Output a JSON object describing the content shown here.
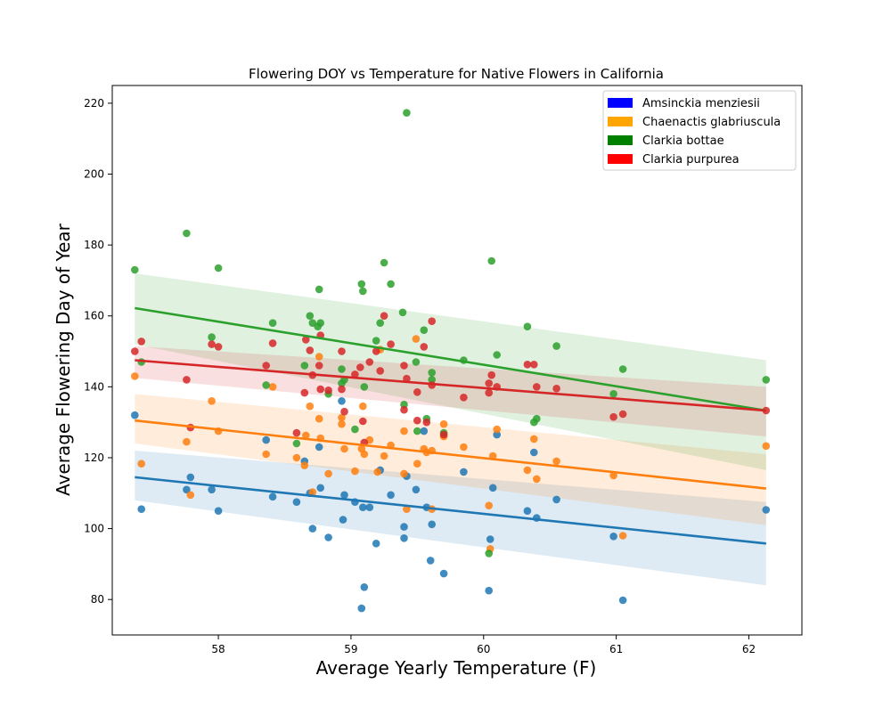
{
  "chart_data": {
    "type": "scatter",
    "title": "Flowering DOY vs Temperature for Native Flowers in California",
    "xlabel": "Average Yearly Temperature (F)",
    "ylabel": "Average Flowering Day of Year",
    "xlim": [
      57.2,
      62.4
    ],
    "ylim": [
      70,
      225
    ],
    "xticks": [
      58,
      59,
      60,
      61,
      62
    ],
    "yticks": [
      80,
      100,
      120,
      140,
      160,
      180,
      200,
      220
    ],
    "grid": false,
    "legend_position": "top-right",
    "series": [
      {
        "name": "Amsinckia menziesii",
        "legend_color": "#0000ff",
        "color": "#1f77b4",
        "fit": {
          "x0": 57.37,
          "y0": 114.5,
          "x1": 62.13,
          "y1": 95.8,
          "band_lo_left": 108.0,
          "band_lo_right": 84.0,
          "band_hi_left": 122.0,
          "band_hi_right": 107.5
        },
        "points": [
          [
            57.37,
            132
          ],
          [
            57.42,
            105.5
          ],
          [
            57.76,
            111
          ],
          [
            57.79,
            114.5
          ],
          [
            57.95,
            111
          ],
          [
            58.0,
            105
          ],
          [
            58.36,
            125
          ],
          [
            58.41,
            109
          ],
          [
            58.59,
            107.5
          ],
          [
            58.65,
            119
          ],
          [
            58.69,
            110
          ],
          [
            58.71,
            100
          ],
          [
            58.76,
            123
          ],
          [
            58.77,
            111.5
          ],
          [
            58.83,
            97.5
          ],
          [
            58.93,
            136
          ],
          [
            58.94,
            102.5
          ],
          [
            58.95,
            109.5
          ],
          [
            59.03,
            107.5
          ],
          [
            59.08,
            77.5
          ],
          [
            59.09,
            106
          ],
          [
            59.1,
            83.5
          ],
          [
            59.14,
            106
          ],
          [
            59.19,
            95.8
          ],
          [
            59.22,
            116.5
          ],
          [
            59.3,
            109.5
          ],
          [
            59.4,
            100.5
          ],
          [
            59.4,
            97.3
          ],
          [
            59.42,
            114.8
          ],
          [
            59.49,
            111
          ],
          [
            59.55,
            127.5
          ],
          [
            59.57,
            106
          ],
          [
            59.6,
            91
          ],
          [
            59.61,
            101.2
          ],
          [
            59.7,
            87.3
          ],
          [
            59.85,
            116
          ],
          [
            60.04,
            82.5
          ],
          [
            60.05,
            97
          ],
          [
            60.07,
            111.5
          ],
          [
            60.1,
            126.5
          ],
          [
            60.33,
            105
          ],
          [
            60.38,
            121.5
          ],
          [
            60.4,
            103
          ],
          [
            60.55,
            108.2
          ],
          [
            60.98,
            97.8
          ],
          [
            61.05,
            79.8
          ],
          [
            62.13,
            105.3
          ]
        ]
      },
      {
        "name": "Chaenactis glabriuscula",
        "legend_color": "#ffa500",
        "color": "#ff7f0e",
        "fit": {
          "x0": 57.37,
          "y0": 130.5,
          "x1": 62.13,
          "y1": 111.3,
          "band_lo_left": 124.0,
          "band_lo_right": 101.0,
          "band_hi_left": 138.0,
          "band_hi_right": 121.0
        },
        "points": [
          [
            57.37,
            143
          ],
          [
            57.42,
            118.3
          ],
          [
            57.76,
            124.5
          ],
          [
            57.79,
            109.5
          ],
          [
            57.95,
            136
          ],
          [
            58.0,
            127.5
          ],
          [
            58.36,
            121
          ],
          [
            58.41,
            140
          ],
          [
            58.59,
            120
          ],
          [
            58.65,
            117.8
          ],
          [
            58.66,
            126.3
          ],
          [
            58.69,
            134.5
          ],
          [
            58.71,
            110.3
          ],
          [
            58.76,
            131
          ],
          [
            58.76,
            148.5
          ],
          [
            58.77,
            125.5
          ],
          [
            58.83,
            115.5
          ],
          [
            58.93,
            129.5
          ],
          [
            58.93,
            131.3
          ],
          [
            58.95,
            122.5
          ],
          [
            59.03,
            116.2
          ],
          [
            59.08,
            122.5
          ],
          [
            59.09,
            134.5
          ],
          [
            59.1,
            121
          ],
          [
            59.14,
            125
          ],
          [
            59.2,
            116
          ],
          [
            59.22,
            150.5
          ],
          [
            59.25,
            120.5
          ],
          [
            59.3,
            123.5
          ],
          [
            59.4,
            127.5
          ],
          [
            59.4,
            115.5
          ],
          [
            59.42,
            105.5
          ],
          [
            59.49,
            153.5
          ],
          [
            59.5,
            118.3
          ],
          [
            59.55,
            122.5
          ],
          [
            59.57,
            121.5
          ],
          [
            59.61,
            105.5
          ],
          [
            59.61,
            122
          ],
          [
            59.7,
            129.5
          ],
          [
            59.7,
            126
          ],
          [
            59.85,
            123
          ],
          [
            60.04,
            106.5
          ],
          [
            60.05,
            94.3
          ],
          [
            60.07,
            120.5
          ],
          [
            60.1,
            128
          ],
          [
            60.33,
            116.5
          ],
          [
            60.38,
            125.3
          ],
          [
            60.4,
            114
          ],
          [
            60.55,
            119
          ],
          [
            60.98,
            115
          ],
          [
            61.05,
            98
          ],
          [
            62.13,
            123.3
          ]
        ]
      },
      {
        "name": "Clarkia bottae",
        "legend_color": "#008000",
        "color": "#2ca02c",
        "fit": {
          "x0": 57.37,
          "y0": 162.2,
          "x1": 62.13,
          "y1": 133.3,
          "band_lo_left": 152.0,
          "band_lo_right": 116.5,
          "band_hi_left": 172.0,
          "band_hi_right": 147.5
        },
        "points": [
          [
            57.37,
            173
          ],
          [
            57.42,
            147
          ],
          [
            57.76,
            183.3
          ],
          [
            57.95,
            154
          ],
          [
            58.0,
            173.5
          ],
          [
            58.36,
            140.5
          ],
          [
            58.41,
            158
          ],
          [
            58.59,
            124
          ],
          [
            58.65,
            146
          ],
          [
            58.69,
            160
          ],
          [
            58.71,
            158
          ],
          [
            58.75,
            157
          ],
          [
            58.76,
            167.5
          ],
          [
            58.77,
            158
          ],
          [
            58.83,
            138
          ],
          [
            58.93,
            141
          ],
          [
            58.93,
            145
          ],
          [
            58.95,
            142
          ],
          [
            59.03,
            128
          ],
          [
            59.08,
            169
          ],
          [
            59.09,
            167
          ],
          [
            59.1,
            140
          ],
          [
            59.19,
            153
          ],
          [
            59.22,
            158
          ],
          [
            59.25,
            175
          ],
          [
            59.3,
            169
          ],
          [
            59.39,
            161
          ],
          [
            59.4,
            135
          ],
          [
            59.42,
            217.3
          ],
          [
            59.49,
            147
          ],
          [
            59.5,
            127.5
          ],
          [
            59.55,
            156
          ],
          [
            59.57,
            131
          ],
          [
            59.61,
            144
          ],
          [
            59.61,
            142
          ],
          [
            59.7,
            127
          ],
          [
            59.85,
            147.5
          ],
          [
            60.04,
            93
          ],
          [
            60.06,
            175.5
          ],
          [
            60.1,
            149
          ],
          [
            60.33,
            157
          ],
          [
            60.38,
            130
          ],
          [
            60.4,
            131
          ],
          [
            60.55,
            151.5
          ],
          [
            60.98,
            138
          ],
          [
            61.05,
            145
          ],
          [
            62.13,
            142
          ]
        ]
      },
      {
        "name": "Clarkia purpurea",
        "legend_color": "#ff0000",
        "color": "#d62728",
        "fit": {
          "x0": 57.37,
          "y0": 147.5,
          "x1": 62.13,
          "y1": 133.3,
          "band_lo_left": 142.5,
          "band_lo_right": 126.0,
          "band_hi_left": 151.5,
          "band_hi_right": 140.0
        },
        "points": [
          [
            57.37,
            150
          ],
          [
            57.42,
            152.8
          ],
          [
            57.76,
            142
          ],
          [
            57.79,
            128.5
          ],
          [
            57.95,
            152
          ],
          [
            58.0,
            151.3
          ],
          [
            58.36,
            146
          ],
          [
            58.41,
            152.3
          ],
          [
            58.59,
            127
          ],
          [
            58.65,
            138.3
          ],
          [
            58.66,
            153.3
          ],
          [
            58.69,
            150.3
          ],
          [
            58.71,
            143.3
          ],
          [
            58.76,
            146
          ],
          [
            58.77,
            154.5
          ],
          [
            58.77,
            139.3
          ],
          [
            58.83,
            139
          ],
          [
            58.93,
            139.3
          ],
          [
            58.93,
            150
          ],
          [
            58.95,
            133
          ],
          [
            59.03,
            143.5
          ],
          [
            59.07,
            145.5
          ],
          [
            59.09,
            130.3
          ],
          [
            59.1,
            124.3
          ],
          [
            59.14,
            147
          ],
          [
            59.19,
            150
          ],
          [
            59.22,
            144.5
          ],
          [
            59.25,
            160
          ],
          [
            59.3,
            152
          ],
          [
            59.4,
            146
          ],
          [
            59.4,
            133.5
          ],
          [
            59.42,
            142.3
          ],
          [
            59.5,
            130.5
          ],
          [
            59.5,
            138.5
          ],
          [
            59.55,
            151.3
          ],
          [
            59.57,
            130
          ],
          [
            59.61,
            158.5
          ],
          [
            59.61,
            140.5
          ],
          [
            59.7,
            126.5
          ],
          [
            59.85,
            137
          ],
          [
            60.04,
            141
          ],
          [
            60.04,
            138.3
          ],
          [
            60.06,
            143.3
          ],
          [
            60.1,
            140
          ],
          [
            60.33,
            146.3
          ],
          [
            60.38,
            146.3
          ],
          [
            60.4,
            140
          ],
          [
            60.55,
            139.5
          ],
          [
            60.98,
            131.5
          ],
          [
            61.05,
            132.3
          ],
          [
            62.13,
            133.3
          ]
        ]
      }
    ]
  }
}
